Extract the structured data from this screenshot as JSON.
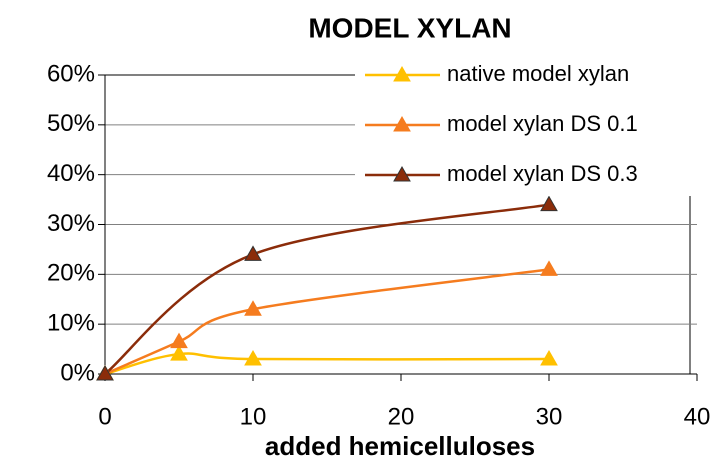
{
  "chart_data": {
    "type": "line",
    "title": "MODEL XYLAN",
    "x_label": "added hemicelluloses",
    "xlim": [
      0,
      40
    ],
    "xticks": [
      0,
      10,
      20,
      30,
      40
    ],
    "ylim": [
      0,
      60
    ],
    "yticks": [
      {
        "value": 0,
        "label": "0%"
      },
      {
        "value": 10,
        "label": "10%"
      },
      {
        "value": 20,
        "label": "20%"
      },
      {
        "value": 30,
        "label": "30%"
      },
      {
        "value": 40,
        "label": "40%"
      },
      {
        "value": 50,
        "label": "50%"
      },
      {
        "value": 60,
        "label": "60%"
      }
    ],
    "grid": true,
    "legend": "upper right",
    "series": [
      {
        "name": "native model xylan",
        "color": "#ffc000",
        "x": [
          0,
          5,
          10,
          30
        ],
        "values": [
          0,
          4,
          3,
          3
        ]
      },
      {
        "name": "model xylan DS 0.1",
        "color": "#f57c1f",
        "x": [
          0,
          5,
          10,
          30
        ],
        "values": [
          0,
          6.5,
          13,
          21
        ]
      },
      {
        "name": "model xylan DS 0.3",
        "color": "#8b2c0a",
        "x": [
          0,
          10,
          30
        ],
        "values": [
          0,
          24,
          34
        ]
      }
    ]
  }
}
